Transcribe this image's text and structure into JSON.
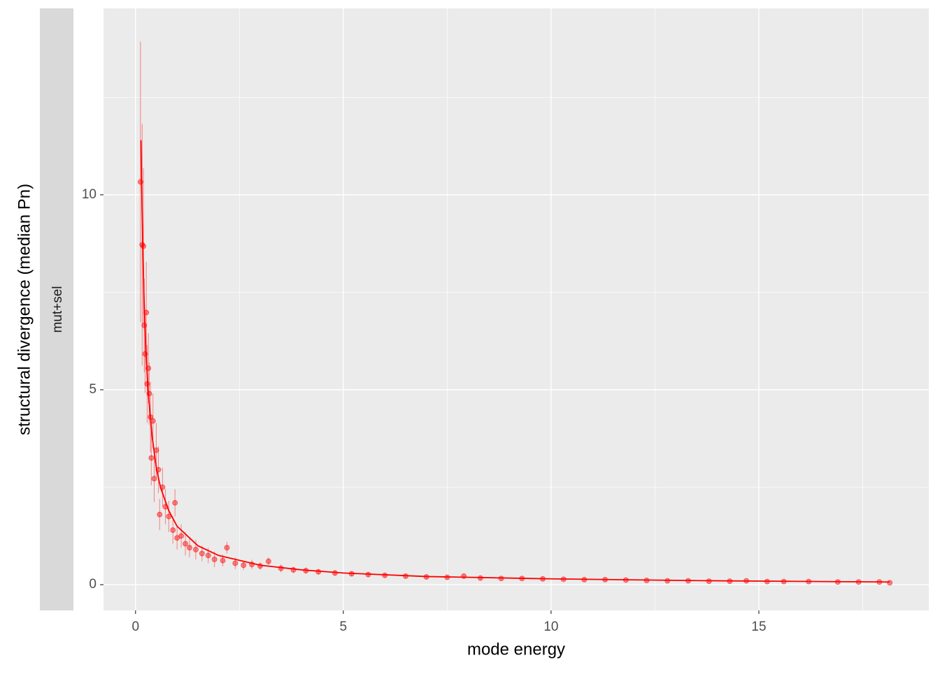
{
  "chart_data": {
    "type": "scatter",
    "facet": "mut+sel",
    "x_label": "mode energy",
    "y_label": "structural divergence (median Pn)",
    "xlim": [
      -0.77,
      19.09
    ],
    "ylim": [
      -0.66,
      14.78
    ],
    "xticks": [
      0,
      5,
      10,
      15
    ],
    "yticks": [
      0,
      5,
      10
    ],
    "xminor": [
      2.5,
      7.5,
      12.5,
      17.5
    ],
    "yminor": [
      2.5,
      7.5,
      12.5
    ],
    "grid": true,
    "series": [
      {
        "geom": "point",
        "color": "#ff0000",
        "x": [
          0.12,
          0.16,
          0.19,
          0.21,
          0.23,
          0.26,
          0.28,
          0.31,
          0.33,
          0.36,
          0.38,
          0.42,
          0.45,
          0.5,
          0.55,
          0.58,
          0.65,
          0.72,
          0.8,
          0.9,
          0.95,
          1.0,
          1.1,
          1.2,
          1.3,
          1.45,
          1.6,
          1.75,
          1.9,
          2.1,
          2.2,
          2.4,
          2.6,
          2.8,
          3.0,
          3.2,
          3.5,
          3.8,
          4.1,
          4.4,
          4.8,
          5.2,
          5.6,
          6.0,
          6.5,
          7.0,
          7.5,
          7.9,
          8.3,
          8.8,
          9.3,
          9.8,
          10.3,
          10.8,
          11.3,
          11.8,
          12.3,
          12.8,
          13.3,
          13.8,
          14.3,
          14.7,
          15.2,
          15.6,
          16.2,
          16.9,
          17.4,
          17.9,
          18.15
        ],
        "values": [
          10.33,
          8.72,
          8.68,
          6.65,
          5.92,
          6.98,
          5.15,
          5.55,
          4.9,
          4.3,
          3.25,
          4.2,
          2.72,
          3.45,
          2.95,
          1.8,
          2.5,
          2.0,
          1.75,
          1.4,
          2.1,
          1.2,
          1.25,
          1.05,
          0.95,
          0.9,
          0.8,
          0.75,
          0.65,
          0.62,
          0.95,
          0.55,
          0.5,
          0.52,
          0.48,
          0.6,
          0.42,
          0.38,
          0.36,
          0.33,
          0.3,
          0.28,
          0.26,
          0.24,
          0.22,
          0.2,
          0.19,
          0.22,
          0.17,
          0.16,
          0.16,
          0.15,
          0.14,
          0.13,
          0.13,
          0.12,
          0.11,
          0.1,
          0.1,
          0.09,
          0.09,
          0.1,
          0.08,
          0.08,
          0.08,
          0.07,
          0.07,
          0.07,
          0.05
        ],
        "errors": [
          3.6,
          3.1,
          2.0,
          1.2,
          1.0,
          1.3,
          1.0,
          0.9,
          0.8,
          0.9,
          0.7,
          0.7,
          0.6,
          0.7,
          0.6,
          0.4,
          0.5,
          0.45,
          0.4,
          0.35,
          0.35,
          0.3,
          0.3,
          0.3,
          0.25,
          0.25,
          0.2,
          0.2,
          0.2,
          0.15,
          0.15,
          0.15,
          0.12,
          0.12,
          0.1,
          0.1,
          0.1,
          0.08,
          0.08,
          0.07,
          0.07,
          0.06,
          0.05,
          0.05,
          0.05,
          0.04,
          0.04,
          0.04,
          0.04,
          0.03,
          0.03,
          0.03,
          0.03,
          0.03,
          0.03,
          0.02,
          0.02,
          0.02,
          0.02,
          0.02,
          0.02,
          0.02,
          0.02,
          0.02,
          0.01,
          0.01,
          0.01,
          0.01,
          0.01
        ]
      },
      {
        "geom": "line",
        "color": "#ff0000",
        "x": [
          0.13,
          0.16,
          0.2,
          0.25,
          0.3,
          0.4,
          0.5,
          0.6,
          0.8,
          1,
          1.5,
          2,
          3,
          4,
          5,
          7,
          10,
          14,
          18.15
        ],
        "values": [
          11.4,
          9.5,
          7.5,
          6.0,
          5.0,
          3.8,
          3.0,
          2.5,
          1.9,
          1.5,
          1.0,
          0.75,
          0.5,
          0.38,
          0.3,
          0.21,
          0.15,
          0.1,
          0.07
        ]
      }
    ]
  }
}
